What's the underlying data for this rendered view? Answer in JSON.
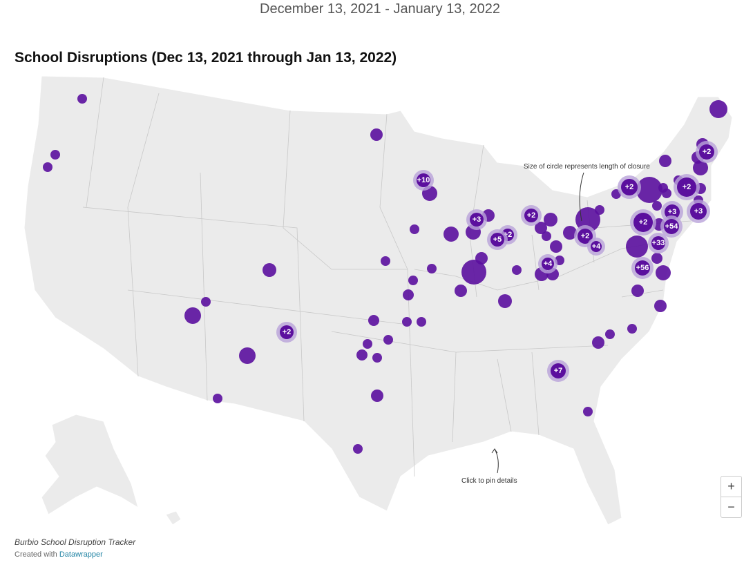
{
  "header": {
    "date_range": "December 13, 2021 - January 13, 2022"
  },
  "title": "School Disruptions (Dec 13, 2021 through Jan 13, 2022)",
  "annotations": {
    "size_note": "Size of circle represents length of closure",
    "click_note": "Click to pin details"
  },
  "cluster_labels": [
    "+10",
    "+3",
    "+2",
    "+5",
    "+2",
    "+2",
    "+4",
    "+4",
    "+2",
    "+2",
    "+2",
    "+3",
    "+3",
    "+2",
    "+54",
    "+33",
    "+56",
    "+2",
    "+7"
  ],
  "zoom": {
    "in": "+",
    "out": "−"
  },
  "footer": {
    "source": "Burbio School Disruption Tracker",
    "credit_prefix": "Created with",
    "credit_link": "Datawrapper"
  }
}
